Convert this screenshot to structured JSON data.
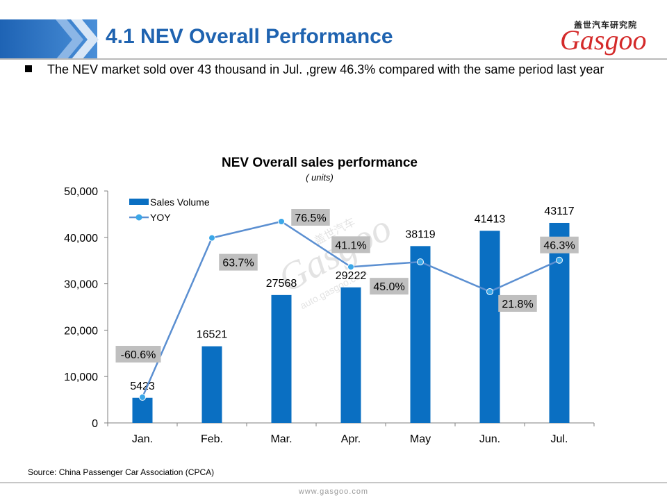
{
  "header": {
    "title": "4.1 NEV Overall Performance",
    "logo_cn": "盖世汽车研究院",
    "logo_word": "Gasgoo"
  },
  "bullet": {
    "text": "The NEV market sold over 43 thousand in Jul. ,grew 46.3% compared with the same period last year"
  },
  "colors": {
    "header_blue": "#1f63b0",
    "bar_blue": "#0a6fc2",
    "line_blue": "#5b8fd1",
    "marker_blue": "#3ba7e8",
    "label_box": "#bfbfbf",
    "logo_red": "#d42a2a"
  },
  "chart_data": {
    "type": "bar",
    "title": "NEV Overall sales performance",
    "subtitle": "( units)",
    "categories": [
      "Jan.",
      "Feb.",
      "Mar.",
      "Apr.",
      "May",
      "Jun.",
      "Jul."
    ],
    "series": [
      {
        "name": "Sales Volume",
        "type": "bar",
        "values": [
          5423,
          16521,
          27568,
          29222,
          38119,
          41413,
          43117
        ]
      },
      {
        "name": "YOY",
        "type": "line",
        "values": [
          -60.6,
          63.7,
          76.5,
          41.1,
          45.0,
          21.8,
          46.3
        ],
        "labels": [
          "-60.6%",
          "63.7%",
          "76.5%",
          "41.1%",
          "45.0%",
          "21.8%",
          "46.3%"
        ]
      }
    ],
    "ylim": [
      0,
      50000
    ],
    "yticks": [
      "0",
      "10,000",
      "20,000",
      "30,000",
      "40,000",
      "50,000"
    ],
    "legend": "top-left",
    "grid": false
  },
  "watermark": {
    "big": "Gasgoo",
    "small": "auto.gasgoo.com",
    "cn": "盖世汽车"
  },
  "source": "Source: China Passenger Car Association (CPCA)",
  "footer_url": "www.gasgoo.com"
}
